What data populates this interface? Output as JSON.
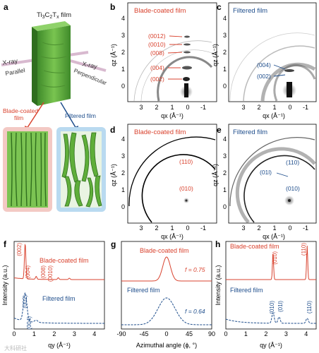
{
  "colors": {
    "blade": "#d9432f",
    "filtered": "#1f4e8c",
    "film_green": "#5fae3a",
    "xray": "#c9a9c0"
  },
  "panels": {
    "a": {
      "letter": "a",
      "film_title": "Ti3C2Tx film",
      "xray_left": "X-ray",
      "parallel": "Parallel",
      "xray_right": "X-ray",
      "perpendicular": "Perpendicular",
      "blade_label_1": "Blade-coated",
      "blade_label_2": "film",
      "filtered_label": "Filtered film"
    },
    "b": {
      "letter": "b",
      "title": "Blade-coated film",
      "peaks": [
        "(0012)",
        "(0010)",
        "(008)",
        "(004)",
        "(002)"
      ],
      "yticks": [
        "4",
        "3",
        "2",
        "1",
        "0"
      ],
      "xticks": [
        "3",
        "2",
        "1",
        "0",
        "-1"
      ],
      "xlabel": "qx (Å⁻¹)",
      "ylabel": "qz (Å⁻¹)"
    },
    "c": {
      "letter": "c",
      "title": "Filtered film",
      "peaks": [
        "(004)",
        "(002)"
      ],
      "yticks": [
        "4",
        "3",
        "2",
        "1",
        "0"
      ],
      "xticks": [
        "3",
        "2",
        "1",
        "0",
        "-1"
      ],
      "xlabel": "qx (Å⁻¹)",
      "ylabel": "qz (Å⁻¹)"
    },
    "d": {
      "letter": "d",
      "title": "Blade-coated film",
      "peaks": [
        "(110)",
        "(010)"
      ],
      "yticks": [
        "4",
        "3",
        "2",
        "1",
        "0"
      ],
      "xticks": [
        "3",
        "2",
        "1",
        "0",
        "-1"
      ],
      "xlabel": "qx (Å⁻¹)",
      "ylabel": "qz (Å⁻¹)"
    },
    "e": {
      "letter": "e",
      "title": "Filtered film",
      "peaks": [
        "(110)",
        "(01l)",
        "(010)"
      ],
      "yticks": [
        "4",
        "3",
        "2",
        "1",
        "0"
      ],
      "xticks": [
        "3",
        "2",
        "1",
        "0",
        "-1"
      ],
      "xlabel": "qx (Å⁻¹)",
      "ylabel": "qz (Å⁻¹)"
    }
  },
  "chart_data": [
    {
      "panel": "f",
      "type": "line",
      "title": "",
      "xlabel": "qy (Å⁻¹)",
      "ylabel": "Intensity (a.u.)",
      "xlim": [
        0,
        4.5
      ],
      "xticks": [
        "0",
        "1",
        "2",
        "3",
        "4"
      ],
      "series": [
        {
          "name": "Blade-coated film",
          "peaks": [
            [
              0.55,
              1.0
            ],
            [
              1.1,
              0.08
            ],
            [
              2.2,
              0.05
            ],
            [
              2.75,
              0.04
            ]
          ]
        },
        {
          "name": "Filtered film",
          "peaks": [
            [
              0.55,
              0.8
            ],
            [
              1.1,
              0.06
            ]
          ]
        }
      ],
      "annotations": [
        "(002)",
        "(004)",
        "(008)",
        "(0010)",
        "(002)",
        "(004)"
      ]
    },
    {
      "panel": "g",
      "type": "line",
      "title": "",
      "xlabel": "Azimuthal angle (ϕ, °)",
      "ylabel": "",
      "xlim": [
        -90,
        90
      ],
      "xticks": [
        "-90",
        "-45",
        "0",
        "45",
        "90"
      ],
      "series": [
        {
          "name": "Blade-coated film",
          "f": 0.75,
          "fwhm_deg": 18
        },
        {
          "name": "Filtered film",
          "f": 0.64,
          "fwhm_deg": 40
        }
      ],
      "annotations": [
        "f = 0.75",
        "f = 0.64"
      ]
    },
    {
      "panel": "h",
      "type": "line",
      "title": "",
      "xlabel": "qy (Å⁻¹)",
      "ylabel": "Intensity (a.u.)",
      "xlim": [
        0,
        4.5
      ],
      "xticks": [
        "0",
        "1",
        "2",
        "3",
        "4"
      ],
      "series": [
        {
          "name": "Blade-coated film",
          "peaks": [
            [
              2.35,
              0.8
            ],
            [
              4.05,
              1.0
            ]
          ]
        },
        {
          "name": "Filtered film",
          "peaks": [
            [
              2.35,
              0.25
            ],
            [
              2.65,
              0.15
            ],
            [
              4.05,
              0.12
            ]
          ]
        }
      ],
      "annotations": [
        "(010)",
        "(110)",
        "(010)",
        "(01l)",
        "(110)"
      ]
    }
  ],
  "watermark": "大科研社"
}
